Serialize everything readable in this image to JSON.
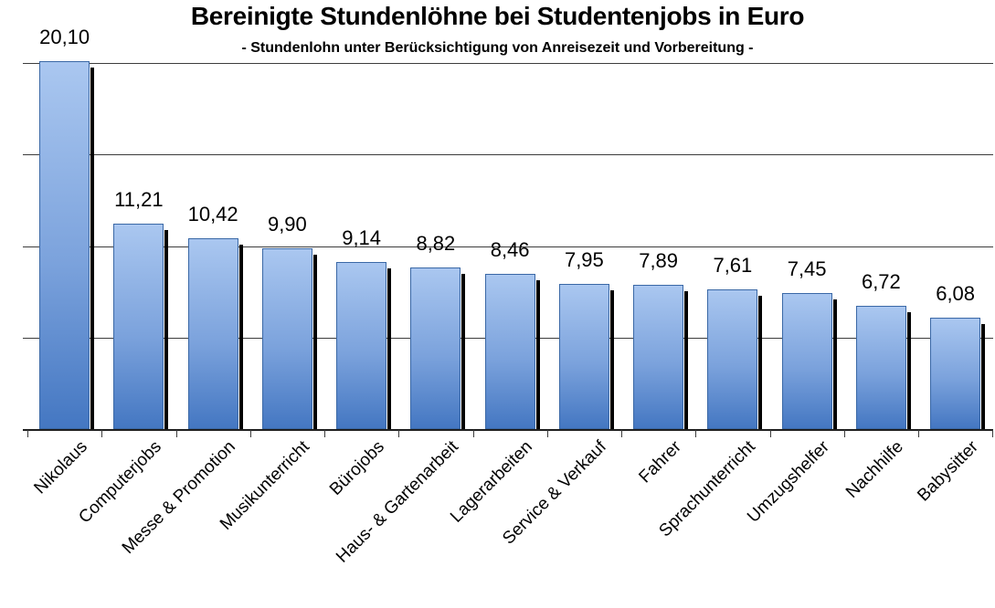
{
  "title": "Bereinigte Stundenlöhne bei Studentenjobs in Euro",
  "subtitle": "- Stundenlohn unter Berücksichtigung von Anreisezeit und Vorbereitung -",
  "chart_data": {
    "type": "bar",
    "title": "Bereinigte Stundenlöhne bei Studentenjobs in Euro",
    "subtitle": "- Stundenlohn unter Berücksichtigung von Anreisezeit und Vorbereitung -",
    "categories": [
      "Nikolaus",
      "Computerjobs",
      "Messe & Promotion",
      "Musikunterricht",
      "Bürojobs",
      "Haus- & Gartenarbeit",
      "Lagerarbeiten",
      "Service & Verkauf",
      "Fahrer",
      "Sprachunterricht",
      "Umzugshelfer",
      "Nachhilfe",
      "Babysitter"
    ],
    "values": [
      20.1,
      11.21,
      10.42,
      9.9,
      9.14,
      8.82,
      8.46,
      7.95,
      7.89,
      7.61,
      7.45,
      6.72,
      6.08
    ],
    "value_labels": [
      "20,10",
      "11,21",
      "10,42",
      "9,90",
      "9,14",
      "8,82",
      "8,46",
      "7,95",
      "7,89",
      "7,61",
      "7,45",
      "6,72",
      "6,08"
    ],
    "xlabel": "",
    "ylabel": "",
    "ylim": [
      0,
      20.1
    ],
    "gridlines": [
      5,
      10,
      15,
      20
    ],
    "grid": true,
    "legend": false,
    "unit": "Euro",
    "decimal_separator": ",",
    "colors": {
      "bar_top": "#aac7f0",
      "bar_mid": "#7ba2dc",
      "bar_bottom": "#4477c2",
      "bar_border": "#3a68a6",
      "shadow": "#000000",
      "grid": "#3c3c3c",
      "axis": "#1f1f1f",
      "text": "#000000",
      "background": "#ffffff"
    }
  }
}
